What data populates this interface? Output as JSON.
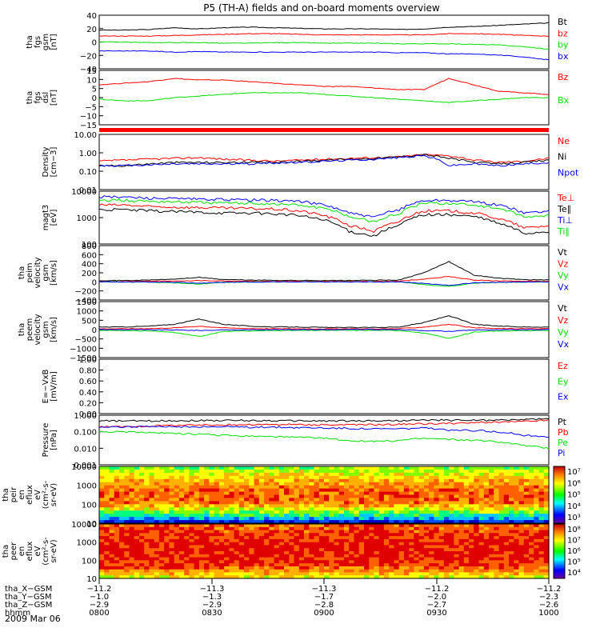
{
  "title": "P5 (TH-A) fields and on-board moments overview",
  "date": "2009 Mar 06",
  "colors": {
    "black": "#000000",
    "red": "#ff0000",
    "green": "#00e000",
    "blue": "#0000ff"
  },
  "chart_data": [
    {
      "type": "line",
      "id": "fgs-gsm",
      "ylabel": [
        "tha",
        "fgs",
        "gsm",
        "[nT]"
      ],
      "yticks": [
        "40",
        "20",
        "0",
        "−20",
        "−40"
      ],
      "ylim": [
        -45,
        45
      ],
      "series": [
        {
          "name": "Bt",
          "color": "black",
          "values": [
            20,
            20,
            21,
            24,
            22,
            24,
            25,
            24,
            23,
            22,
            22,
            22,
            21,
            22,
            25,
            26,
            28,
            30,
            32
          ]
        },
        {
          "name": "bz",
          "color": "red",
          "values": [
            10,
            10,
            10,
            11,
            12,
            13,
            14,
            14,
            13,
            12,
            12,
            12,
            12,
            12,
            14,
            14,
            13,
            11,
            10
          ]
        },
        {
          "name": "by",
          "color": "green",
          "values": [
            0,
            0,
            -1,
            -1,
            -1,
            -2,
            -2,
            -1,
            -1,
            -2,
            -2,
            -2,
            -3,
            -3,
            -3,
            -4,
            -5,
            -8,
            -12
          ]
        },
        {
          "name": "bx",
          "color": "blue",
          "values": [
            -15,
            -15,
            -15,
            -17,
            -16,
            -17,
            -17,
            -17,
            -17,
            -17,
            -17,
            -17,
            -18,
            -18,
            -20,
            -20,
            -22,
            -25,
            -30
          ]
        }
      ]
    },
    {
      "type": "line",
      "id": "fgs-dsl",
      "ylabel": [
        "tha",
        "fgs",
        "dsl",
        "[nT]"
      ],
      "yticks": [
        "15",
        "10",
        "5",
        "0",
        "−5",
        "−10",
        "−15"
      ],
      "ylim": [
        -17,
        17
      ],
      "series": [
        {
          "name": "Bz",
          "color": "red",
          "values": [
            8,
            9,
            10,
            12,
            11,
            11,
            10,
            9,
            8,
            7,
            7,
            6,
            5,
            5,
            12,
            8,
            4,
            3,
            2
          ]
        },
        {
          "name": "Bx",
          "color": "green",
          "values": [
            -1,
            -2,
            -2,
            0,
            1,
            2,
            3,
            3,
            3,
            2,
            1,
            0,
            -1,
            -2,
            -3,
            -2,
            -1,
            0,
            0
          ]
        }
      ]
    },
    {
      "type": "line",
      "id": "density",
      "ylabel": [
        "Density",
        "[cm−3]"
      ],
      "yticks": [
        "10.00",
        "1.00",
        "0.10",
        "0.01"
      ],
      "ylog": true,
      "ylim": [
        0.01,
        10
      ],
      "series": [
        {
          "name": "Ne",
          "color": "red",
          "values": [
            0.35,
            0.4,
            0.45,
            0.5,
            0.55,
            0.45,
            0.4,
            0.35,
            0.4,
            0.45,
            0.5,
            0.55,
            0.6,
            0.8,
            0.7,
            0.4,
            0.3,
            0.35,
            0.5
          ]
        },
        {
          "name": "Ni",
          "color": "black",
          "values": [
            0.2,
            0.2,
            0.25,
            0.3,
            0.3,
            0.3,
            0.3,
            0.3,
            0.35,
            0.4,
            0.45,
            0.5,
            0.6,
            0.8,
            0.5,
            0.3,
            0.25,
            0.3,
            0.4
          ]
        },
        {
          "name": "Npot",
          "color": "blue",
          "values": [
            0.2,
            0.2,
            0.22,
            0.25,
            0.25,
            0.25,
            0.25,
            0.28,
            0.3,
            0.35,
            0.4,
            0.45,
            0.55,
            0.7,
            0.2,
            0.25,
            0.2,
            0.25,
            0.3
          ]
        }
      ]
    },
    {
      "type": "line",
      "id": "temperature",
      "ylabel": [
        "magt3",
        "[eV]"
      ],
      "yticks": [
        "10000",
        "1000",
        "100"
      ],
      "ylog": true,
      "ylim": [
        100,
        10000
      ],
      "series": [
        {
          "name": "Te⊥",
          "color": "red",
          "values": [
            3000,
            3000,
            2600,
            2500,
            2400,
            2300,
            2200,
            2100,
            1800,
            1200,
            500,
            300,
            700,
            1800,
            1800,
            1500,
            900,
            400,
            500
          ]
        },
        {
          "name": "Te∥",
          "color": "black",
          "values": [
            2000,
            2000,
            1800,
            1700,
            1600,
            1500,
            1500,
            1400,
            1200,
            800,
            300,
            200,
            500,
            1300,
            1300,
            1100,
            600,
            250,
            300
          ]
        },
        {
          "name": "Ti⊥",
          "color": "blue",
          "values": [
            6000,
            6000,
            5500,
            5200,
            5000,
            4800,
            4700,
            4500,
            4200,
            3000,
            1500,
            1000,
            2000,
            4500,
            4500,
            4000,
            3000,
            1500,
            1800
          ]
        },
        {
          "name": "Ti∥",
          "color": "green",
          "values": [
            4500,
            4500,
            4200,
            4000,
            3800,
            3600,
            3500,
            3300,
            3000,
            2200,
            1100,
            700,
            1400,
            3500,
            3500,
            3000,
            2200,
            1000,
            1200
          ]
        }
      ]
    },
    {
      "type": "line",
      "id": "peim-velocity",
      "ylabel": [
        "tha",
        "peim",
        "velocity",
        "gsm",
        "[km/s]"
      ],
      "yticks": [
        "800",
        "600",
        "400",
        "200",
        "0",
        "−200",
        "−400"
      ],
      "ylim": [
        -400,
        800
      ],
      "series": [
        {
          "name": "Vt",
          "color": "black",
          "values": [
            30,
            30,
            40,
            60,
            100,
            50,
            40,
            35,
            30,
            30,
            30,
            35,
            40,
            200,
            450,
            150,
            80,
            50,
            40
          ]
        },
        {
          "name": "Vz",
          "color": "red",
          "values": [
            10,
            10,
            15,
            20,
            30,
            20,
            15,
            10,
            10,
            10,
            10,
            10,
            15,
            60,
            120,
            40,
            20,
            15,
            10
          ]
        },
        {
          "name": "Vy",
          "color": "green",
          "values": [
            0,
            0,
            -10,
            -20,
            -50,
            -10,
            -5,
            0,
            0,
            0,
            0,
            0,
            0,
            -60,
            -100,
            -30,
            -10,
            -5,
            0
          ]
        },
        {
          "name": "Vx",
          "color": "blue",
          "values": [
            0,
            0,
            -5,
            -10,
            -30,
            -10,
            -5,
            0,
            0,
            0,
            0,
            0,
            0,
            -30,
            -80,
            -20,
            -10,
            -5,
            0
          ]
        }
      ]
    },
    {
      "type": "line",
      "id": "peem-velocity",
      "ylabel": [
        "tha",
        "peem",
        "velocity",
        "gsm",
        "[km/s]"
      ],
      "yticks": [
        "1500",
        "1000",
        "500",
        "0",
        "−500",
        "−1000",
        "−1500"
      ],
      "ylim": [
        -1600,
        1600
      ],
      "series": [
        {
          "name": "Vt",
          "color": "black",
          "values": [
            150,
            150,
            200,
            300,
            600,
            300,
            200,
            150,
            150,
            120,
            120,
            120,
            150,
            400,
            800,
            300,
            200,
            150,
            150
          ]
        },
        {
          "name": "Vz",
          "color": "red",
          "values": [
            50,
            50,
            60,
            100,
            200,
            100,
            60,
            50,
            50,
            40,
            40,
            40,
            50,
            150,
            300,
            100,
            60,
            50,
            50
          ]
        },
        {
          "name": "Vy",
          "color": "green",
          "values": [
            -50,
            -50,
            -80,
            -150,
            -400,
            -100,
            -80,
            -50,
            -50,
            -40,
            -40,
            -40,
            -50,
            -200,
            -500,
            -150,
            -80,
            -50,
            -50
          ]
        },
        {
          "name": "Vx",
          "color": "blue",
          "values": [
            0,
            0,
            -10,
            -20,
            -50,
            -20,
            -10,
            0,
            0,
            0,
            0,
            0,
            0,
            -50,
            -100,
            -20,
            -10,
            0,
            0
          ]
        }
      ]
    },
    {
      "type": "line",
      "id": "exb",
      "ylabel": [
        "E=−VxB",
        "[mV/m]"
      ],
      "yticks": [
        "1.00",
        "0.80",
        "0.60",
        "0.40",
        "0.20",
        "0.00"
      ],
      "ylim": [
        0,
        1
      ],
      "series": [
        {
          "name": "Ez",
          "color": "red",
          "values": []
        },
        {
          "name": "Ey",
          "color": "green",
          "values": []
        },
        {
          "name": "Ex",
          "color": "blue",
          "values": []
        }
      ]
    },
    {
      "type": "line",
      "id": "pressure",
      "ylabel": [
        "Pressure",
        "[nPa]"
      ],
      "yticks": [
        "1.000",
        "0.100",
        "0.010",
        "0.001"
      ],
      "ylog": true,
      "ylim": [
        0.001,
        1
      ],
      "series": [
        {
          "name": "Pt",
          "color": "black",
          "values": [
            0.45,
            0.45,
            0.45,
            0.47,
            0.48,
            0.48,
            0.48,
            0.47,
            0.46,
            0.45,
            0.45,
            0.46,
            0.47,
            0.5,
            0.5,
            0.5,
            0.5,
            0.55,
            0.6
          ]
        },
        {
          "name": "Pb",
          "color": "red",
          "values": [
            0.2,
            0.2,
            0.22,
            0.25,
            0.25,
            0.26,
            0.27,
            0.27,
            0.27,
            0.26,
            0.26,
            0.27,
            0.28,
            0.3,
            0.32,
            0.35,
            0.38,
            0.42,
            0.5
          ]
        },
        {
          "name": "Pe",
          "color": "green",
          "values": [
            0.1,
            0.1,
            0.09,
            0.08,
            0.07,
            0.06,
            0.055,
            0.05,
            0.045,
            0.04,
            0.03,
            0.025,
            0.03,
            0.04,
            0.035,
            0.03,
            0.025,
            0.015,
            0.01
          ]
        },
        {
          "name": "Pi",
          "color": "blue",
          "values": [
            0.2,
            0.2,
            0.2,
            0.2,
            0.2,
            0.2,
            0.19,
            0.19,
            0.18,
            0.17,
            0.16,
            0.15,
            0.15,
            0.17,
            0.12,
            0.12,
            0.1,
            0.06,
            0.05
          ]
        }
      ]
    },
    {
      "type": "heatmap",
      "id": "peir-eflux",
      "ylabel": [
        "tha",
        "peir",
        "en",
        "eflux",
        "eV",
        "(cm²-s-",
        "sr-eV)"
      ],
      "yticks": [
        "10000",
        "1000",
        "100",
        "10"
      ],
      "ylog": true,
      "colorbar": {
        "ticks": [
          "10⁷",
          "10⁶",
          "10⁵",
          "10⁴",
          "10³"
        ]
      }
    },
    {
      "type": "heatmap",
      "id": "peer-eflux",
      "ylabel": [
        "tha",
        "peer",
        "en",
        "eflux",
        "eV",
        "(cm²-s-",
        "sr-eV)"
      ],
      "yticks": [
        "10000",
        "1000",
        "100",
        "10"
      ],
      "ylog": true,
      "colorbar": {
        "ticks": [
          "10⁸",
          "10⁷",
          "10⁶",
          "10⁵",
          "10⁴"
        ]
      }
    }
  ],
  "xaxis": {
    "rows": [
      {
        "label": "tha_X−GSM",
        "values": [
          "−11.2",
          "−11.3",
          "−11.3",
          "−11.2",
          "−11.2"
        ]
      },
      {
        "label": "tha_Y−GSM",
        "values": [
          "−1.0",
          "−1.3",
          "−1.7",
          "−2.0",
          "−2.3"
        ]
      },
      {
        "label": "tha_Z−GSM",
        "values": [
          "−2.9",
          "−2.9",
          "−2.8",
          "−2.7",
          "−2.6"
        ]
      },
      {
        "label": "hhmm",
        "values": [
          "0800",
          "0830",
          "0900",
          "0930",
          "1000"
        ]
      }
    ]
  }
}
